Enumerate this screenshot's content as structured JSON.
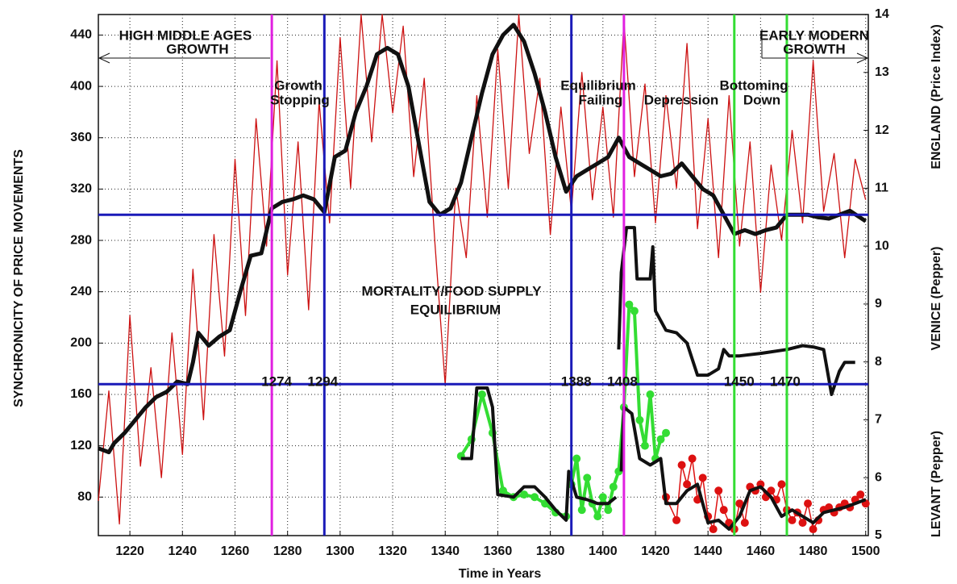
{
  "chart_data": {
    "type": "line",
    "xlabel": "Time in Years",
    "ylabel": "SYNCHRONICITY OF PRICE MOVEMENTS",
    "y2labels": [
      "ENGLAND (Price Index)",
      "VENICE (Pepper)",
      "LEVANT (Pepper)"
    ],
    "xlim": [
      1208,
      1501
    ],
    "ylim": [
      50,
      456
    ],
    "y2lim": [
      5,
      14
    ],
    "xticks": [
      1220,
      1240,
      1260,
      1280,
      1300,
      1320,
      1340,
      1360,
      1380,
      1400,
      1420,
      1440,
      1460,
      1480,
      1500
    ],
    "yticks": [
      80,
      120,
      160,
      200,
      240,
      280,
      320,
      360,
      400,
      440
    ],
    "y2ticks": [
      5,
      6,
      7,
      8,
      9,
      10,
      11,
      12,
      13,
      14
    ],
    "grid": true,
    "annotations": [
      "HIGH MIDDLE AGES",
      "GROWTH",
      "EARLY MODERN",
      "GROWTH",
      "Growth",
      "Stopping",
      "Equilibrium",
      "Failing",
      "Depression",
      "Bottoming",
      "Down",
      "MORTALITY/FOOD SUPPLY",
      "EQUILIBRIUM"
    ],
    "vlines": [
      {
        "value": 1274,
        "color": "#e020e0"
      },
      {
        "value": 1294,
        "color": "#1a1ab8"
      },
      {
        "value": 1388,
        "color": "#1a1ab8"
      },
      {
        "value": 1408,
        "color": "#e020e0"
      },
      {
        "value": 1450,
        "color": "#33dd33"
      },
      {
        "value": 1470,
        "color": "#33dd33"
      }
    ],
    "hlines": [
      {
        "value": 300,
        "color": "#1a1ab8"
      },
      {
        "value": 168,
        "color": "#1a1ab8"
      }
    ],
    "series": [
      {
        "color": "#cc1111",
        "axis": "y2",
        "width": 1.3,
        "markers": false,
        "x": [
          1208,
          1212,
          1216,
          1220,
          1224,
          1228,
          1232,
          1236,
          1240,
          1244,
          1248,
          1252,
          1256,
          1260,
          1264,
          1268,
          1272,
          1276,
          1280,
          1284,
          1288,
          1292,
          1296,
          1300,
          1304,
          1308,
          1312,
          1316,
          1320,
          1324,
          1328,
          1332,
          1336,
          1340,
          1344,
          1348,
          1352,
          1356,
          1360,
          1364,
          1368,
          1372,
          1376,
          1380,
          1384,
          1388,
          1392,
          1396,
          1400,
          1404,
          1408,
          1412,
          1416,
          1420,
          1424,
          1428,
          1432,
          1436,
          1440,
          1444,
          1448,
          1452,
          1456,
          1460,
          1464,
          1468,
          1472,
          1476,
          1480,
          1484,
          1488,
          1492,
          1496,
          1500
        ],
        "values": [
          5.6,
          7.5,
          5.2,
          8.8,
          6.2,
          7.9,
          6.0,
          8.5,
          6.4,
          9.6,
          7.0,
          10.2,
          8.1,
          11.5,
          8.8,
          12.2,
          10.0,
          13.2,
          9.5,
          11.8,
          8.9,
          12.5,
          10.4,
          13.6,
          11.0,
          14,
          11.8,
          14,
          12.3,
          13.8,
          11.2,
          12.9,
          10.1,
          7.6,
          11.0,
          9.8,
          12.6,
          10.5,
          13.4,
          11.0,
          14,
          11.6,
          12.9,
          10.2,
          12.4,
          10.6,
          13.0,
          10.8,
          12.4,
          10.5,
          13.9,
          11.2,
          12.8,
          10.4,
          12.6,
          11.0,
          13.5,
          10.3,
          12.2,
          9.8,
          12.6,
          10.0,
          11.8,
          9.2,
          11.4,
          10.1,
          12.0,
          10.4,
          13.2,
          10.6,
          11.6,
          9.8,
          11.5,
          10.8
        ]
      },
      {
        "color": "#111111",
        "width": 5,
        "markers": false,
        "x": [
          1208,
          1212,
          1214,
          1218,
          1222,
          1226,
          1230,
          1234,
          1238,
          1242,
          1244,
          1246,
          1250,
          1254,
          1258,
          1262,
          1266,
          1270,
          1274,
          1278,
          1282,
          1286,
          1290,
          1294,
          1298,
          1302,
          1306,
          1310,
          1314,
          1318,
          1322,
          1326,
          1330,
          1334,
          1338,
          1342,
          1346,
          1350,
          1354,
          1358,
          1362,
          1366,
          1370,
          1374,
          1378,
          1382,
          1386,
          1390,
          1394,
          1398,
          1402,
          1406,
          1410,
          1414,
          1418,
          1422,
          1426,
          1430,
          1434,
          1438,
          1442,
          1446,
          1450,
          1454,
          1458,
          1462,
          1466,
          1470,
          1474,
          1478,
          1482,
          1486,
          1490,
          1494,
          1500
        ],
        "values": [
          118,
          115,
          122,
          130,
          140,
          150,
          158,
          162,
          170,
          168,
          185,
          208,
          198,
          205,
          210,
          240,
          268,
          270,
          305,
          310,
          312,
          315,
          312,
          302,
          345,
          350,
          380,
          400,
          425,
          430,
          425,
          400,
          355,
          310,
          300,
          305,
          325,
          360,
          395,
          425,
          440,
          448,
          435,
          410,
          380,
          345,
          318,
          330,
          335,
          340,
          345,
          360,
          345,
          340,
          335,
          330,
          332,
          340,
          330,
          320,
          315,
          300,
          285,
          288,
          285,
          288,
          290,
          300,
          300,
          300,
          298,
          297,
          300,
          303,
          295
        ]
      },
      {
        "color": "#33dd33",
        "width": 4,
        "markers": true,
        "x": [
          1346,
          1350,
          1354,
          1358,
          1362,
          1366,
          1370,
          1374,
          1378,
          1382,
          1386
        ],
        "values": [
          112,
          125,
          160,
          130,
          85,
          80,
          82,
          80,
          75,
          68,
          65
        ]
      },
      {
        "color": "#33dd33",
        "width": 4,
        "markers": true,
        "x": [
          1388,
          1390,
          1392,
          1394,
          1396,
          1398,
          1400,
          1402,
          1404,
          1406,
          1408,
          1410,
          1412,
          1414,
          1416,
          1418,
          1420,
          1422,
          1424
        ],
        "values": [
          90,
          110,
          70,
          95,
          75,
          65,
          80,
          70,
          88,
          100,
          150,
          230,
          225,
          140,
          120,
          160,
          110,
          125,
          130
        ]
      },
      {
        "color": "#111111",
        "width": 4,
        "markers": false,
        "x": [
          1346,
          1350,
          1352,
          1356,
          1358,
          1360,
          1366,
          1370,
          1374,
          1378,
          1382,
          1386,
          1387,
          1390,
          1394,
          1398,
          1402,
          1405
        ],
        "values": [
          110,
          110,
          165,
          165,
          150,
          82,
          80,
          88,
          88,
          80,
          70,
          62,
          100,
          80,
          78,
          75,
          75,
          80
        ]
      },
      {
        "color": "#111111",
        "width": 4,
        "markers": false,
        "x": [
          1406,
          1407,
          1409,
          1412,
          1413,
          1418,
          1419,
          1420,
          1424,
          1428,
          1432,
          1436,
          1440,
          1444,
          1446,
          1448,
          1452,
          1460,
          1470,
          1476,
          1480,
          1484,
          1487,
          1490,
          1492,
          1496
        ],
        "values": [
          195,
          255,
          290,
          290,
          250,
          250,
          275,
          225,
          210,
          208,
          200,
          175,
          175,
          180,
          195,
          190,
          190,
          192,
          195,
          198,
          197,
          195,
          160,
          178,
          185,
          185
        ]
      },
      {
        "color": "#dd1111",
        "width": 1.5,
        "markers": true,
        "x": [
          1424,
          1428,
          1430,
          1432,
          1434,
          1436,
          1438,
          1440,
          1442,
          1444,
          1446,
          1448,
          1450,
          1452,
          1454,
          1456,
          1458,
          1460,
          1462,
          1464,
          1466,
          1468,
          1470,
          1472,
          1474,
          1476,
          1478,
          1480,
          1482,
          1484,
          1486,
          1488,
          1490,
          1492,
          1494,
          1496,
          1498,
          1500
        ],
        "values": [
          80,
          62,
          105,
          90,
          110,
          78,
          95,
          65,
          55,
          85,
          70,
          60,
          55,
          75,
          60,
          88,
          85,
          90,
          80,
          85,
          78,
          90,
          70,
          62,
          68,
          60,
          75,
          55,
          62,
          70,
          72,
          68,
          72,
          75,
          72,
          78,
          82,
          75
        ]
      },
      {
        "color": "#111111",
        "width": 4,
        "markers": false,
        "x": [
          1407,
          1408,
          1411,
          1414,
          1418,
          1422,
          1424,
          1428,
          1432,
          1436,
          1440,
          1444,
          1448,
          1452,
          1456,
          1460,
          1464,
          1468,
          1472,
          1476,
          1480,
          1484,
          1488,
          1492,
          1496,
          1500
        ],
        "values": [
          100,
          150,
          145,
          110,
          105,
          110,
          75,
          75,
          85,
          90,
          60,
          62,
          55,
          65,
          85,
          88,
          80,
          65,
          70,
          65,
          60,
          68,
          70,
          72,
          75,
          78
        ]
      }
    ]
  }
}
